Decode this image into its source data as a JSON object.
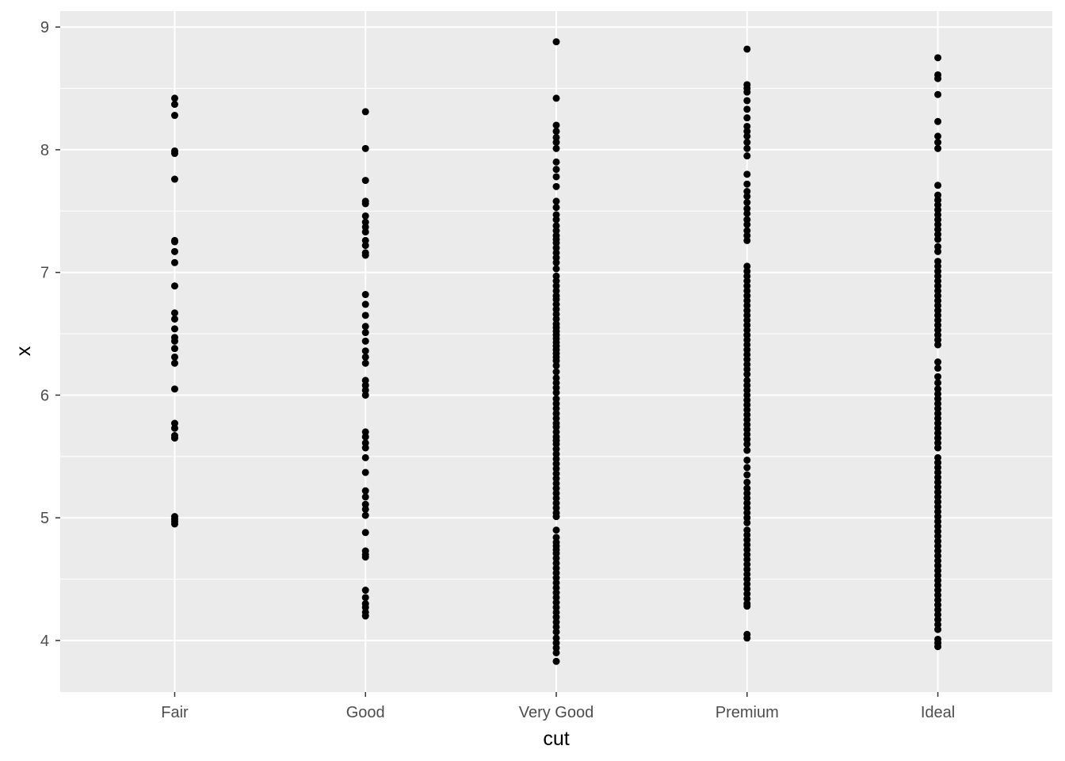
{
  "chart_data": {
    "type": "scatter",
    "xlabel": "cut",
    "ylabel": "x",
    "categories": [
      "Fair",
      "Good",
      "Very Good",
      "Premium",
      "Ideal"
    ],
    "ylim": [
      3.58,
      9.13
    ],
    "y_major_ticks": [
      4,
      5,
      6,
      7,
      8,
      9
    ],
    "y_minor_ticks": [
      4.5,
      5.5,
      6.5,
      7.5,
      8.5
    ],
    "grid": true,
    "legend": "none",
    "colors": {
      "panel": "#ebebeb",
      "grid": "#ffffff",
      "point": "#000000",
      "tick_text": "#4d4d4d"
    },
    "series": [
      {
        "category": "Fair",
        "y": [
          8.42,
          8.37,
          8.28,
          7.99,
          7.97,
          7.76,
          7.26,
          7.25,
          7.17,
          7.08,
          6.89,
          6.67,
          6.62,
          6.54,
          6.47,
          6.44,
          6.38,
          6.31,
          6.26,
          6.05,
          5.77,
          5.73,
          5.67,
          5.65,
          5.01,
          4.99,
          4.97,
          4.95
        ]
      },
      {
        "category": "Good",
        "y": [
          8.31,
          8.01,
          7.75,
          7.58,
          7.56,
          7.46,
          7.41,
          7.37,
          7.33,
          7.26,
          7.22,
          7.16,
          7.14,
          6.82,
          6.74,
          6.65,
          6.56,
          6.51,
          6.44,
          6.36,
          6.31,
          6.26,
          6.12,
          6.08,
          6.04,
          6.0,
          5.7,
          5.66,
          5.61,
          5.57,
          5.49,
          5.37,
          5.22,
          5.17,
          5.11,
          5.07,
          5.02,
          4.88,
          4.73,
          4.7,
          4.68,
          4.41,
          4.35,
          4.3,
          4.27,
          4.23,
          4.2
        ]
      },
      {
        "category": "Very Good",
        "y": [
          8.88,
          8.42,
          8.2,
          8.15,
          8.1,
          8.06,
          8.01,
          7.9,
          7.84,
          7.78,
          7.7,
          7.58,
          7.53,
          7.47,
          7.43,
          7.38,
          7.34,
          7.3,
          7.27,
          7.24,
          7.2,
          7.16,
          7.12,
          7.08,
          7.03,
          6.97,
          6.93,
          6.89,
          6.85,
          6.81,
          6.78,
          6.74,
          6.7,
          6.66,
          6.62,
          6.58,
          6.55,
          6.52,
          6.49,
          6.46,
          6.43,
          6.4,
          6.37,
          6.34,
          6.31,
          6.28,
          6.24,
          6.19,
          6.14,
          6.1,
          6.06,
          6.02,
          5.97,
          5.93,
          5.89,
          5.85,
          5.81,
          5.77,
          5.74,
          5.7,
          5.66,
          5.63,
          5.6,
          5.56,
          5.52,
          5.48,
          5.44,
          5.4,
          5.36,
          5.32,
          5.28,
          5.24,
          5.2,
          5.16,
          5.12,
          5.08,
          5.04,
          5.01,
          4.9,
          4.84,
          4.8,
          4.77,
          4.74,
          4.71,
          4.67,
          4.63,
          4.59,
          4.55,
          4.51,
          4.47,
          4.43,
          4.39,
          4.35,
          4.31,
          4.27,
          4.23,
          4.19,
          4.15,
          4.11,
          4.07,
          4.02,
          3.98,
          3.94,
          3.9,
          3.83
        ]
      },
      {
        "category": "Premium",
        "y": [
          8.82,
          8.53,
          8.5,
          8.47,
          8.4,
          8.33,
          8.26,
          8.19,
          8.15,
          8.11,
          8.06,
          8.01,
          7.95,
          7.8,
          7.72,
          7.66,
          7.62,
          7.57,
          7.52,
          7.48,
          7.43,
          7.39,
          7.34,
          7.3,
          7.26,
          7.05,
          7.01,
          6.97,
          6.93,
          6.89,
          6.85,
          6.81,
          6.77,
          6.73,
          6.69,
          6.65,
          6.61,
          6.57,
          6.53,
          6.49,
          6.45,
          6.41,
          6.37,
          6.33,
          6.29,
          6.25,
          6.21,
          6.17,
          6.12,
          6.08,
          6.04,
          6.0,
          5.96,
          5.92,
          5.88,
          5.84,
          5.8,
          5.76,
          5.72,
          5.68,
          5.64,
          5.6,
          5.55,
          5.47,
          5.41,
          5.35,
          5.29,
          5.24,
          5.2,
          5.16,
          5.12,
          5.08,
          5.04,
          5.0,
          4.96,
          4.9,
          4.86,
          4.82,
          4.78,
          4.74,
          4.7,
          4.66,
          4.62,
          4.58,
          4.54,
          4.5,
          4.46,
          4.42,
          4.38,
          4.34,
          4.3,
          4.28,
          4.05,
          4.02
        ]
      },
      {
        "category": "Ideal",
        "y": [
          8.75,
          8.61,
          8.58,
          8.45,
          8.23,
          8.11,
          8.06,
          8.01,
          7.71,
          7.63,
          7.59,
          7.55,
          7.51,
          7.47,
          7.43,
          7.39,
          7.35,
          7.31,
          7.27,
          7.21,
          7.17,
          7.09,
          7.05,
          7.01,
          6.97,
          6.93,
          6.89,
          6.85,
          6.81,
          6.77,
          6.73,
          6.69,
          6.65,
          6.61,
          6.57,
          6.53,
          6.49,
          6.45,
          6.41,
          6.27,
          6.22,
          6.15,
          6.1,
          6.05,
          6.01,
          5.97,
          5.93,
          5.89,
          5.85,
          5.81,
          5.77,
          5.73,
          5.69,
          5.65,
          5.61,
          5.57,
          5.49,
          5.45,
          5.41,
          5.37,
          5.33,
          5.29,
          5.25,
          5.21,
          5.17,
          5.13,
          5.09,
          5.05,
          5.01,
          4.97,
          4.93,
          4.89,
          4.85,
          4.81,
          4.77,
          4.73,
          4.69,
          4.65,
          4.61,
          4.57,
          4.53,
          4.49,
          4.45,
          4.41,
          4.37,
          4.33,
          4.29,
          4.25,
          4.21,
          4.17,
          4.13,
          4.09,
          4.01,
          3.98,
          3.95
        ]
      }
    ]
  }
}
